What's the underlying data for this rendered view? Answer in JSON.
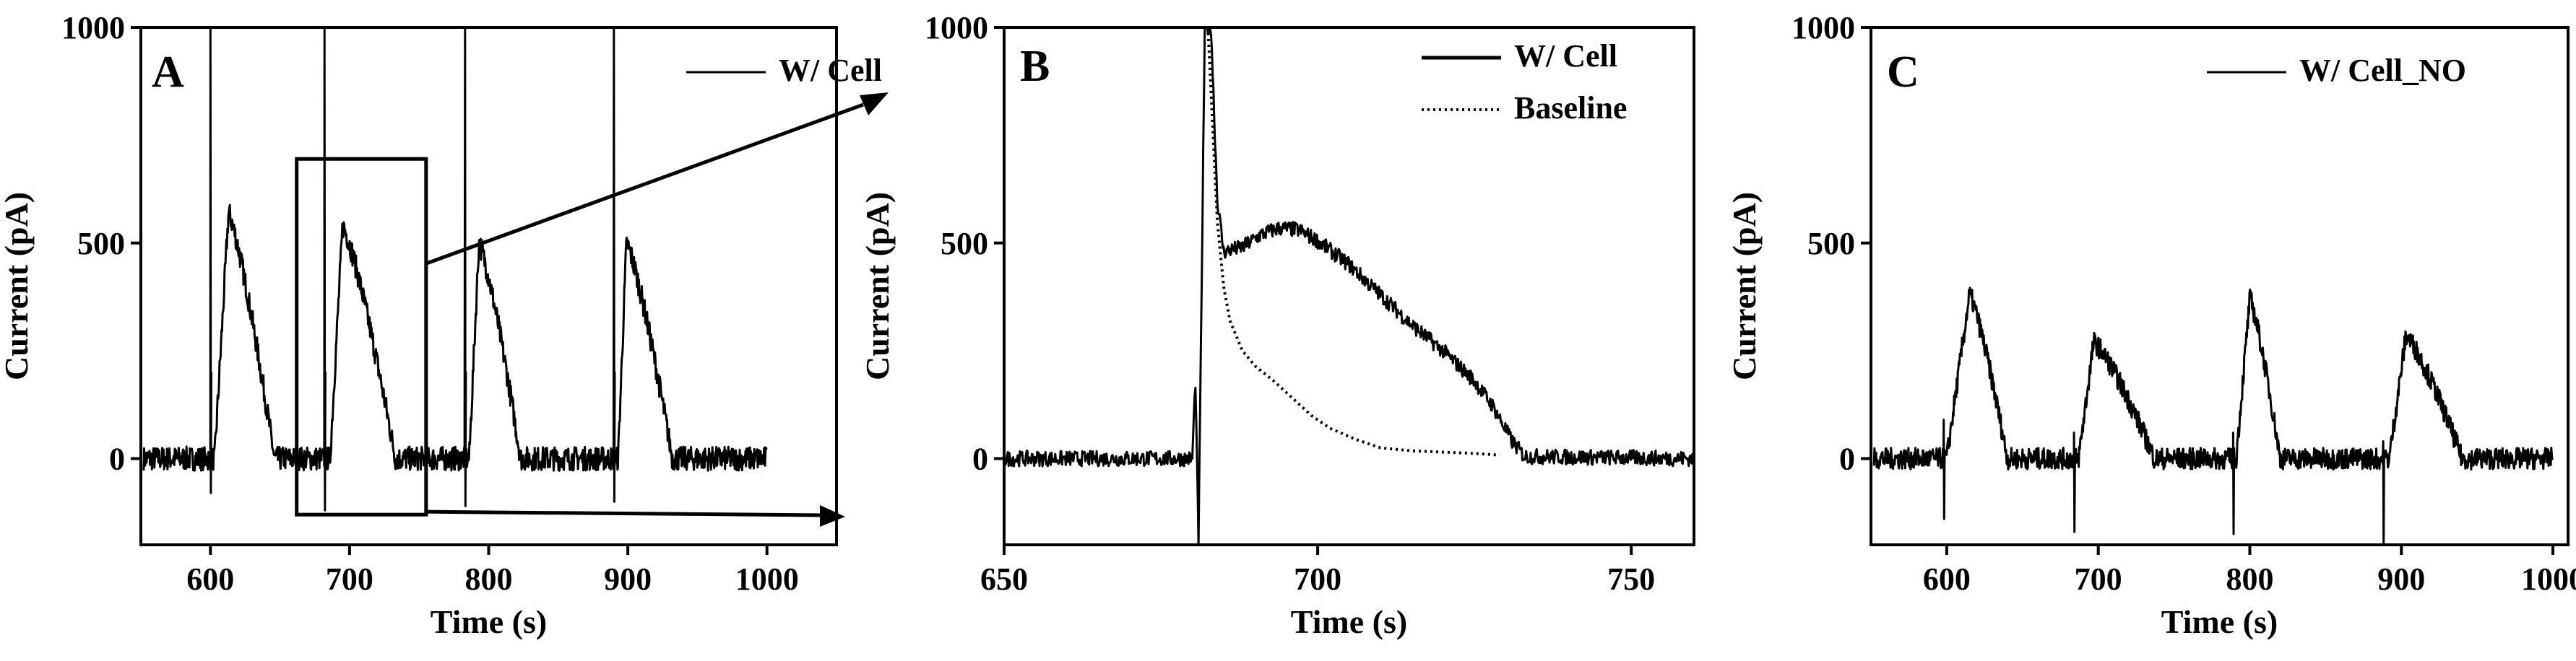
{
  "chart_data": [
    {
      "panel": "A",
      "type": "line",
      "xlabel": "Time (s)",
      "ylabel": "Current (pA)",
      "xlim": [
        550,
        1050
      ],
      "ylim": [
        -200,
        1000
      ],
      "xticks": [
        600,
        700,
        800,
        900,
        1000
      ],
      "yticks": [
        0,
        500,
        1000
      ],
      "legend": {
        "position": "top-right",
        "entries": [
          {
            "label": "W/ Cell",
            "style": "solid"
          }
        ]
      },
      "series": [
        {
          "name": "W/ Cell",
          "style": "solid",
          "x_range": [
            552,
            1000
          ],
          "baseline": 0,
          "noise_amplitude": 28,
          "pulses": [
            {
              "spike_time": 600,
              "spike_max": 1000,
              "spike_min": -80,
              "rise_start": 603,
              "peak_time": 613,
              "peak": 570,
              "end_time": 646
            },
            {
              "spike_time": 682,
              "spike_max": 1000,
              "spike_min": -120,
              "rise_start": 686,
              "peak_time": 695,
              "peak": 540,
              "end_time": 733
            },
            {
              "spike_time": 783,
              "spike_max": 1000,
              "spike_min": -110,
              "rise_start": 786,
              "peak_time": 793,
              "peak": 500,
              "end_time": 823
            },
            {
              "spike_time": 890,
              "spike_max": 1000,
              "spike_min": -100,
              "rise_start": 893,
              "peak_time": 899,
              "peak": 500,
              "end_time": 932
            }
          ]
        }
      ],
      "annotations": [
        {
          "type": "zoom-box",
          "x_range": [
            662,
            755
          ],
          "y_range": [
            -130,
            695
          ]
        }
      ]
    },
    {
      "panel": "B",
      "type": "line",
      "xlabel": "Time (s)",
      "ylabel": "Current (pA)",
      "xlim": [
        650,
        760
      ],
      "ylim": [
        -200,
        1000
      ],
      "xticks": [
        650,
        700,
        750
      ],
      "yticks": [
        0,
        500,
        1000
      ],
      "legend": {
        "position": "top-right",
        "entries": [
          {
            "label": "W/ Cell",
            "style": "solid"
          },
          {
            "label": "Baseline",
            "style": "dotted"
          }
        ]
      },
      "series": [
        {
          "name": "W/ Cell",
          "style": "solid",
          "points": [
            [
              650,
              0
            ],
            [
              680,
              0
            ],
            [
              680.5,
              180
            ],
            [
              681,
              -200
            ],
            [
              682,
              1000
            ],
            [
              683,
              1000
            ],
            [
              684,
              600
            ],
            [
              685,
              480
            ],
            [
              688,
              490
            ],
            [
              691,
              520
            ],
            [
              694,
              535
            ],
            [
              697,
              530
            ],
            [
              700,
              505
            ],
            [
              705,
              450
            ],
            [
              710,
              380
            ],
            [
              715,
              310
            ],
            [
              720,
              250
            ],
            [
              725,
              180
            ],
            [
              728,
              120
            ],
            [
              731,
              40
            ],
            [
              733,
              5
            ],
            [
              760,
              0
            ]
          ],
          "noise_amplitude": 18
        },
        {
          "name": "Baseline",
          "style": "dotted",
          "points": [
            [
              682.5,
              1000
            ],
            [
              684,
              550
            ],
            [
              685,
              400
            ],
            [
              686,
              320
            ],
            [
              688,
              250
            ],
            [
              690,
              215
            ],
            [
              693,
              180
            ],
            [
              696,
              140
            ],
            [
              699,
              100
            ],
            [
              702,
              70
            ],
            [
              706,
              45
            ],
            [
              710,
              25
            ],
            [
              715,
              18
            ],
            [
              720,
              15
            ],
            [
              725,
              12
            ],
            [
              729,
              8
            ]
          ]
        }
      ]
    },
    {
      "panel": "C",
      "type": "line",
      "xlabel": "Time (s)",
      "ylabel": "Current (pA)",
      "xlim": [
        550,
        1010
      ],
      "ylim": [
        -200,
        1000
      ],
      "xticks": [
        600,
        700,
        800,
        900,
        1000
      ],
      "yticks": [
        0,
        500,
        1000
      ],
      "legend": {
        "position": "top-right",
        "entries": [
          {
            "label": "W/ Cell_NO",
            "style": "solid"
          }
        ]
      },
      "series": [
        {
          "name": "W/ Cell_NO",
          "style": "solid",
          "x_range": [
            552,
            1000
          ],
          "baseline": 0,
          "noise_amplitude": 25,
          "pulses": [
            {
              "spike_time": 598,
              "spike_max": 90,
              "spike_min": -140,
              "rise_start": 600,
              "peak_time": 615,
              "peak": 380,
              "end_time": 640
            },
            {
              "spike_time": 684,
              "spike_max": 60,
              "spike_min": -170,
              "rise_start": 687,
              "peak_time": 697,
              "peak": 270,
              "end_time": 737
            },
            {
              "spike_time": 789,
              "spike_max": 60,
              "spike_min": -175,
              "rise_start": 791,
              "peak_time": 800,
              "peak": 370,
              "end_time": 820
            },
            {
              "spike_time": 888,
              "spike_max": 40,
              "spike_min": -200,
              "rise_start": 892,
              "peak_time": 903,
              "peak": 285,
              "end_time": 940
            }
          ]
        }
      ]
    }
  ]
}
